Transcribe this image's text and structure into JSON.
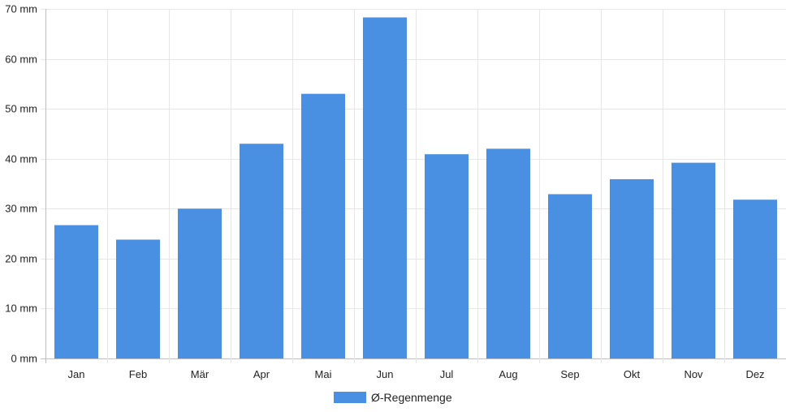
{
  "chart_data": {
    "type": "bar",
    "categories": [
      "Jan",
      "Feb",
      "Mär",
      "Apr",
      "Mai",
      "Jun",
      "Jul",
      "Aug",
      "Sep",
      "Okt",
      "Nov",
      "Dez"
    ],
    "series": [
      {
        "name": "Ø-Regenmenge",
        "values": [
          26.7,
          23.8,
          30,
          43,
          53,
          68.3,
          40.9,
          42,
          32.9,
          35.9,
          39.2,
          31.8
        ],
        "color": "#4a90e2"
      }
    ],
    "ylim": [
      0,
      70
    ],
    "yticks": [
      0,
      10,
      20,
      30,
      40,
      50,
      60,
      70
    ],
    "y_unit": "mm",
    "grid": true,
    "legend_position": "bottom-center"
  }
}
